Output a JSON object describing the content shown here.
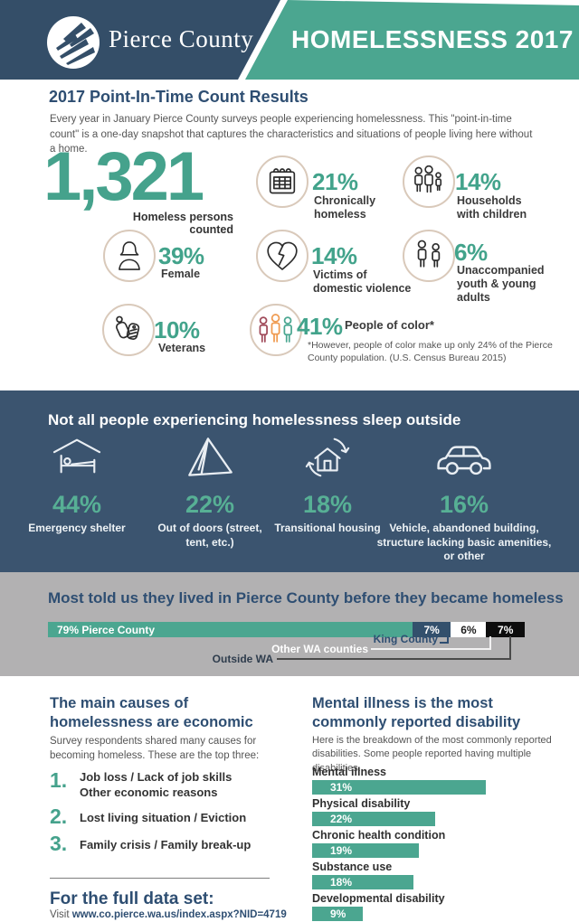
{
  "header": {
    "logo_text": "Pierce County",
    "title": "HOMELESSNESS 2017",
    "navy": "#344e68",
    "teal": "#4ba690"
  },
  "intro": {
    "heading": "2017 Point-In-Time Count Results",
    "body": "Every year in January Pierce County surveys people experiencing homelessness. This \"point-in-time count\" is a one-day snapshot that captures the characteristics and situations of people living here without a home.",
    "count": "1,321",
    "count_label": "Homeless persons counted",
    "stats": [
      {
        "icon": "calendar-icon",
        "value": "21%",
        "label": "Chronically homeless"
      },
      {
        "icon": "family-icon",
        "value": "14%",
        "label": "Households with children"
      },
      {
        "icon": "female-icon",
        "value": "39%",
        "label": "Female"
      },
      {
        "icon": "broken-heart-icon",
        "value": "14%",
        "label": "Victims of domestic violence"
      },
      {
        "icon": "youth-pair-icon",
        "value": "6%",
        "label": "Unaccompanied youth & young adults"
      },
      {
        "icon": "dog-tags-icon",
        "value": "10%",
        "label": "Veterans"
      },
      {
        "icon": "people-of-color-icon",
        "value": "41%",
        "label": "People of color*",
        "footnote": "*However, people of color make up only 24% of the Pierce County population. (U.S. Census Bureau 2015)"
      }
    ]
  },
  "shelter": {
    "heading": "Not all people experiencing homelessness sleep outside",
    "items": [
      {
        "icon": "bed-icon",
        "value": "44%",
        "label": "Emergency shelter"
      },
      {
        "icon": "tent-icon",
        "value": "22%",
        "label": "Out of doors (street, tent, etc.)"
      },
      {
        "icon": "transitional-housing-icon",
        "value": "18%",
        "label": "Transitional housing"
      },
      {
        "icon": "car-icon",
        "value": "16%",
        "label": "Vehicle, abandoned building, structure lacking basic amenities, or other"
      }
    ]
  },
  "origin": {
    "heading": "Most told us they lived in Pierce County before they became homeless",
    "segments": [
      {
        "value": 79,
        "bar_label": "79% Pierce County",
        "color": "#4ba690",
        "callout": ""
      },
      {
        "value": 7,
        "bar_label": "7%",
        "color": "#33506c",
        "callout": "King County"
      },
      {
        "value": 6,
        "bar_label": "6%",
        "color": "#ffffff",
        "callout": "Other WA counties"
      },
      {
        "value": 7,
        "bar_label": "7%",
        "color": "#0d0d0d",
        "callout": "Outside WA"
      }
    ]
  },
  "causes": {
    "heading": "The main causes of homelessness are economic",
    "body": "Survey respondents shared many causes for becoming homeless. These are the top three:",
    "items": [
      {
        "rank": "1.",
        "line1": "Job loss  / Lack of job skills",
        "line2": "Other economic reasons"
      },
      {
        "rank": "2.",
        "line1": "Lost living situation / Eviction",
        "line2": ""
      },
      {
        "rank": "3.",
        "line1": "Family crisis / Family break-up",
        "line2": ""
      }
    ]
  },
  "disabilities": {
    "heading": "Mental illness is the most commonly reported disability",
    "body": "Here is the breakdown of the most commonly reported disabilities. Some people reported having multiple disabilities.",
    "items": [
      {
        "label": "Mental illness",
        "pct": "31%",
        "value": 31
      },
      {
        "label": "Physical disability",
        "pct": "22%",
        "value": 22
      },
      {
        "label": "Chronic health condition",
        "pct": "19%",
        "value": 19
      },
      {
        "label": "Substance use",
        "pct": "18%",
        "value": 18
      },
      {
        "label": "Developmental disability",
        "pct": "9%",
        "value": 9
      }
    ]
  },
  "footer": {
    "heading": "For the full data set:",
    "visit_prefix": "Visit ",
    "url": "www.co.pierce.wa.us/index.aspx?NID=4719"
  },
  "chart_data": [
    {
      "type": "bar",
      "subtype": "icon-stat-grid",
      "title": "2017 Point-In-Time Count Results",
      "total_counted": 1321,
      "categories": [
        "Chronically homeless",
        "Households with children",
        "Female",
        "Victims of domestic violence",
        "Unaccompanied youth & young adults",
        "Veterans",
        "People of color"
      ],
      "values": [
        21,
        14,
        39,
        14,
        6,
        10,
        41
      ],
      "unit": "percent"
    },
    {
      "type": "bar",
      "subtype": "icon-stat-row",
      "title": "Not all people experiencing homelessness sleep outside",
      "categories": [
        "Emergency shelter",
        "Out of doors (street, tent, etc.)",
        "Transitional housing",
        "Vehicle, abandoned building, structure lacking basic amenities, or other"
      ],
      "values": [
        44,
        22,
        18,
        16
      ],
      "unit": "percent"
    },
    {
      "type": "bar",
      "subtype": "stacked-horizontal",
      "title": "Most told us they lived in Pierce County before they became homeless",
      "categories": [
        "Pierce County",
        "King County",
        "Other WA counties",
        "Outside WA"
      ],
      "values": [
        79,
        7,
        6,
        7
      ],
      "unit": "percent",
      "colors": [
        "#4ba690",
        "#33506c",
        "#ffffff",
        "#0d0d0d"
      ]
    },
    {
      "type": "bar",
      "orientation": "horizontal",
      "title": "Mental illness is the most commonly reported disability",
      "categories": [
        "Mental illness",
        "Physical disability",
        "Chronic health condition",
        "Substance use",
        "Developmental disability"
      ],
      "values": [
        31,
        22,
        19,
        18,
        9
      ],
      "unit": "percent",
      "bar_color": "#4ba690"
    }
  ]
}
